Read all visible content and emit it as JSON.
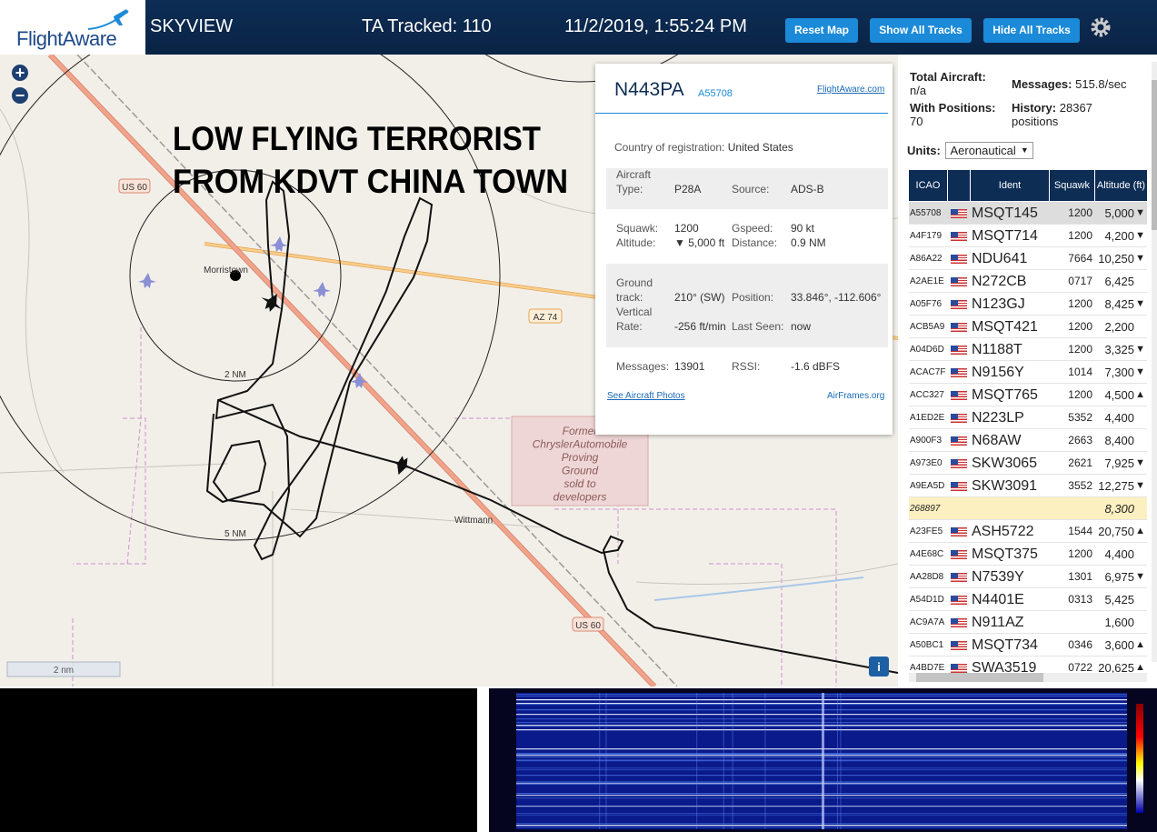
{
  "header": {
    "logo": "FlightAware",
    "app": "SKYVIEW",
    "tracked": "TA Tracked: 110",
    "datetime": "11/2/2019, 1:55:24 PM",
    "buttons": [
      "Reset Map",
      "Show All Tracks",
      "Hide All Tracks"
    ]
  },
  "map": {
    "zoom_in": "+",
    "zoom_out": "−",
    "annotation": [
      "LOW FLYING TERRORIST",
      "FROM KDVT CHINA TOWN"
    ],
    "route_labels": [
      "US 60",
      "AZ 74",
      "US 60"
    ],
    "places": [
      "Morristown",
      "Wittmann"
    ],
    "rings": [
      "2 NM",
      "5 NM"
    ],
    "area_note": [
      "Former",
      "ChryslerAutomobile",
      "Proving",
      "Ground",
      "sold to",
      "developers"
    ],
    "scale": "2 nm",
    "info": "i"
  },
  "popup": {
    "ident": "N443PA",
    "icao": "A55708",
    "link": "FlightAware.com",
    "country_label": "Country of registration:",
    "country": "United States",
    "type_label": "Aircraft Type:",
    "type": "P28A",
    "source_label": "Source:",
    "source": "ADS-B",
    "squawk_label": "Squawk:",
    "squawk": "1200",
    "gspeed_label": "Gspeed:",
    "gspeed": "90 kt",
    "altitude_label": "Altitude:",
    "altitude": "▼ 5,000 ft",
    "distance_label": "Distance:",
    "distance": "0.9 NM",
    "track_label": "Ground track:",
    "track": "210° (SW)",
    "position_label": "Position:",
    "position": "33.846°, -112.606°",
    "vrate_label": "Vertical Rate:",
    "vrate": "-256 ft/min",
    "seen_label": "Last Seen:",
    "seen": "now",
    "messages_label": "Messages:",
    "messages": "13901",
    "rssi_label": "RSSI:",
    "rssi": "-1.6 dBFS",
    "photos": "See Aircraft Photos",
    "airframes": "AirFrames.org"
  },
  "sidebar": {
    "total_label": "Total Aircraft:",
    "total": "n/a",
    "messages_label": "Messages:",
    "messages": "515.8/sec",
    "positions_label": "With Positions:",
    "positions": "70",
    "history_label": "History:",
    "history": "28367 positions",
    "units_label": "Units:",
    "units": "Aeronautical"
  },
  "table": {
    "columns": [
      "ICAO",
      "Ident",
      "Squawk",
      "Altitude (ft)"
    ],
    "rows": [
      {
        "icao": "A55708",
        "ident": "MSQT145",
        "squawk": "1200",
        "altitude": "5,000",
        "trend": "▼"
      },
      {
        "icao": "A4F179",
        "ident": "MSQT714",
        "squawk": "1200",
        "altitude": "4,200",
        "trend": "▼"
      },
      {
        "icao": "A86A22",
        "ident": "NDU641",
        "squawk": "7664",
        "altitude": "10,250",
        "trend": "▼"
      },
      {
        "icao": "A2AE1E",
        "ident": "N272CB",
        "squawk": "0717",
        "altitude": "6,425"
      },
      {
        "icao": "A05F76",
        "ident": "N123GJ",
        "squawk": "1200",
        "altitude": "8,425",
        "trend": "▼"
      },
      {
        "icao": "ACB5A9",
        "ident": "MSQT421",
        "squawk": "1200",
        "altitude": "2,200"
      },
      {
        "icao": "A04D6D",
        "ident": "N1188T",
        "squawk": "1200",
        "altitude": "3,325",
        "trend": "▼"
      },
      {
        "icao": "ACAC7F",
        "ident": "N9156Y",
        "squawk": "1014",
        "altitude": "7,300",
        "trend": "▼"
      },
      {
        "icao": "ACC327",
        "ident": "MSQT765",
        "squawk": "1200",
        "altitude": "4,500",
        "trend": "▲"
      },
      {
        "icao": "A1ED2E",
        "ident": "N223LP",
        "squawk": "5352",
        "altitude": "4,400"
      },
      {
        "icao": "A900F3",
        "ident": "N68AW",
        "squawk": "2663",
        "altitude": "8,400"
      },
      {
        "icao": "A973E0",
        "ident": "SKW3065",
        "squawk": "2621",
        "altitude": "7,925",
        "trend": "▼"
      },
      {
        "icao": "A9EA5D",
        "ident": "SKW3091",
        "squawk": "3552",
        "altitude": "12,275",
        "trend": "▼"
      },
      {
        "icao": "268897",
        "altitude": "8,300"
      },
      {
        "icao": "A23FE5",
        "ident": "ASH5722",
        "squawk": "1544",
        "altitude": "20,750",
        "trend": "▲"
      },
      {
        "icao": "A4E68C",
        "ident": "MSQT375",
        "squawk": "1200",
        "altitude": "4,400"
      },
      {
        "icao": "AA28D8",
        "ident": "N7539Y",
        "squawk": "1301",
        "altitude": "6,975",
        "trend": "▼"
      },
      {
        "icao": "A54D1D",
        "ident": "N4401E",
        "squawk": "0313",
        "altitude": "5,425"
      },
      {
        "icao": "AC9A7A",
        "ident": "N911AZ",
        "altitude": "1,600"
      },
      {
        "icao": "A50BC1",
        "ident": "MSQT734",
        "squawk": "0346",
        "altitude": "3,600",
        "trend": "▲"
      },
      {
        "icao": "A4BD7E",
        "ident": "SWA3519",
        "squawk": "0722",
        "altitude": "20,625",
        "trend": "▲"
      }
    ]
  }
}
